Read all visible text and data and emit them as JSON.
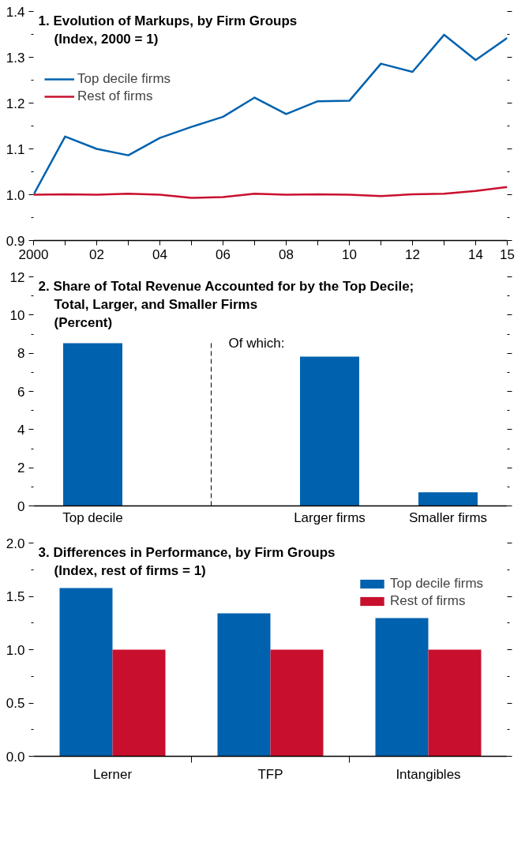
{
  "chart_data": [
    {
      "type": "line",
      "title": "1. Evolution of Markups, by Firm Groups",
      "subtitle": "(Index, 2000 = 1)",
      "x": [
        2000,
        2001,
        2002,
        2003,
        2004,
        2005,
        2006,
        2007,
        2008,
        2009,
        2010,
        2011,
        2012,
        2013,
        2014,
        2015
      ],
      "series": [
        {
          "name": "Top decile firms",
          "color": "#0062ae",
          "values": [
            1.0,
            1.127,
            1.1,
            1.086,
            1.124,
            1.148,
            1.17,
            1.212,
            1.176,
            1.204,
            1.205,
            1.286,
            1.268,
            1.349,
            1.294,
            1.342
          ]
        },
        {
          "name": "Rest of firms",
          "color": "#c8102e",
          "values": [
            1.0,
            1.001,
            1.0,
            1.002,
            1.0,
            0.993,
            0.995,
            1.002,
            1.0,
            1.001,
            1.0,
            0.997,
            1.001,
            1.002,
            1.008,
            1.017
          ]
        }
      ],
      "xlim": [
        2000,
        2015
      ],
      "xticks": [
        2000,
        {
          "value": 2001,
          "label": null
        },
        {
          "value": 2002,
          "label": "02"
        },
        {
          "value": 2003,
          "label": null
        },
        {
          "value": 2004,
          "label": "04"
        },
        {
          "value": 2005,
          "label": null
        },
        {
          "value": 2006,
          "label": "06"
        },
        {
          "value": 2007,
          "label": null
        },
        {
          "value": 2008,
          "label": "08"
        },
        {
          "value": 2009,
          "label": null
        },
        {
          "value": 2010,
          "label": "10"
        },
        {
          "value": 2011,
          "label": null
        },
        {
          "value": 2012,
          "label": "12"
        },
        {
          "value": 2013,
          "label": null
        },
        {
          "value": 2014,
          "label": "14"
        },
        {
          "value": 2015,
          "label": "15"
        }
      ],
      "ylim": [
        0.9,
        1.4
      ],
      "yticks": [
        0.9,
        {
          "value": 0.95,
          "label": null
        },
        {
          "value": 1.0,
          "label": "1.0"
        },
        {
          "value": 1.05,
          "label": null
        },
        1.1,
        {
          "value": 1.15,
          "label": null
        },
        1.2,
        {
          "value": 1.25,
          "label": null
        },
        1.3,
        {
          "value": 1.35,
          "label": null
        },
        1.4
      ],
      "legend": "top left"
    },
    {
      "type": "bar",
      "title": "2. Share of Total Revenue Accounted for by the Top Decile; Total, Larger, and Smaller Firms",
      "subtitle": "(Percent)",
      "categories": [
        "Top decile",
        null,
        "Larger firms",
        "Smaller firms"
      ],
      "values": [
        8.52,
        null,
        7.82,
        0.71
      ],
      "color": "#0062ae",
      "ylim": [
        0,
        12
      ],
      "yticks": [
        0,
        {
          "value": 1,
          "label": null
        },
        2,
        {
          "value": 3,
          "label": null
        },
        4,
        {
          "value": 5,
          "label": null
        },
        6,
        {
          "value": 7,
          "label": null
        },
        8,
        {
          "value": 9,
          "label": null
        },
        10,
        {
          "value": 11,
          "label": null
        },
        12
      ],
      "annotations": [
        "Of which:"
      ]
    },
    {
      "type": "bar",
      "title": "3. Differences in Performance, by Firm Groups",
      "subtitle": "(Index, rest of firms = 1)",
      "categories": [
        "Lerner",
        "TFP",
        "Intangibles"
      ],
      "series": [
        {
          "name": "Top decile firms",
          "color": "#0062ae",
          "values": [
            1.578,
            1.341,
            1.297
          ]
        },
        {
          "name": "Rest of firms",
          "color": "#c8102e",
          "values": [
            1.0,
            1.0,
            1.0
          ]
        }
      ],
      "ylim": [
        0,
        2.0
      ],
      "yticks": [
        {
          "value": 0,
          "label": "0.0"
        },
        {
          "value": 0.25,
          "label": null
        },
        0.5,
        {
          "value": 0.75,
          "label": null
        },
        {
          "value": 1.0,
          "label": "1.0"
        },
        {
          "value": 1.25,
          "label": null
        },
        1.5,
        {
          "value": 1.75,
          "label": null
        },
        {
          "value": 2.0,
          "label": "2.0"
        }
      ],
      "legend": "top right"
    }
  ]
}
